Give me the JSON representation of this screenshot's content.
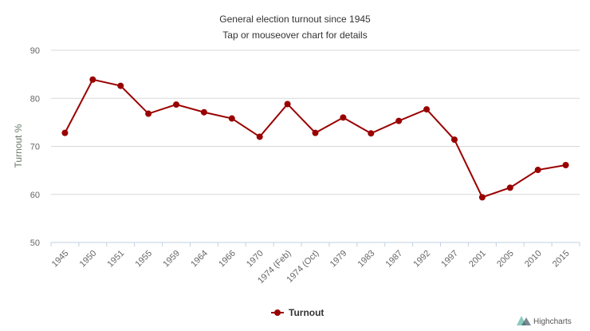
{
  "chart_data": {
    "type": "line",
    "title": "General election turnout since 1945",
    "subtitle": "Tap or mouseover chart for details",
    "xlabel": "",
    "ylabel": "Turnout %",
    "ylim": [
      50,
      90
    ],
    "yticks": [
      50,
      60,
      70,
      80,
      90
    ],
    "grid": true,
    "legend_position": "bottom",
    "categories": [
      "1945",
      "1950",
      "1951",
      "1955",
      "1959",
      "1964",
      "1966",
      "1970",
      "1974 (Feb)",
      "1974 (Oct)",
      "1979",
      "1983",
      "1987",
      "1992",
      "1997",
      "2001",
      "2005",
      "2010",
      "2015"
    ],
    "series": [
      {
        "name": "Turnout",
        "color": "#990000",
        "values": [
          72.8,
          83.9,
          82.6,
          76.8,
          78.7,
          77.1,
          75.8,
          72.0,
          78.8,
          72.8,
          76.0,
          72.7,
          75.3,
          77.7,
          71.4,
          59.4,
          61.4,
          65.1,
          66.1
        ]
      }
    ]
  },
  "credits": "Highcharts"
}
